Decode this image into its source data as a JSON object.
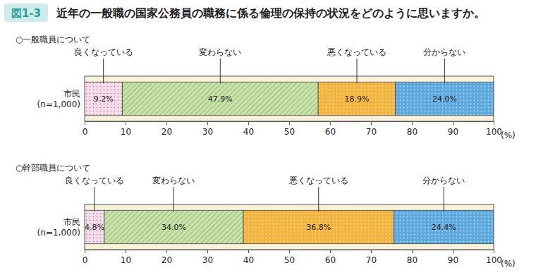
{
  "figure": {
    "label": "図1-3",
    "title": "近年の一般職の国家公務員の職務に係る倫理の保持の状況をどのように思いますか。"
  },
  "chart_data": [
    {
      "type": "bar",
      "orientation": "horizontal",
      "stacked": true,
      "data_labels": true,
      "legend": "top",
      "grid": false,
      "subtitle": "○一般職員について",
      "categories": [
        "市民\n(n=1,000)"
      ],
      "series": [
        {
          "name": "良くなっている",
          "color": "#f9dbe9",
          "values": [
            9.2
          ],
          "value_labels": [
            "9.2%"
          ]
        },
        {
          "name": "変わらない",
          "color": "#c8e3a8",
          "values": [
            47.9
          ],
          "value_labels": [
            "47.9%"
          ]
        },
        {
          "name": "悪くなっている",
          "color": "#f4b33a",
          "values": [
            18.9
          ],
          "value_labels": [
            "18.9%"
          ]
        },
        {
          "name": "分からない",
          "color": "#5ea8e0",
          "values": [
            24.0
          ],
          "value_labels": [
            "24.0%"
          ]
        }
      ],
      "xlim": [
        0,
        100
      ],
      "xticks": [
        0,
        10,
        20,
        30,
        40,
        50,
        60,
        70,
        80,
        90,
        100
      ],
      "xlabel": "(%)"
    },
    {
      "type": "bar",
      "orientation": "horizontal",
      "stacked": true,
      "data_labels": true,
      "legend": "top",
      "grid": false,
      "subtitle": "○幹部職員について",
      "categories": [
        "市民\n(n=1,000)"
      ],
      "series": [
        {
          "name": "良くなっている",
          "color": "#f9dbe9",
          "values": [
            4.8
          ],
          "value_labels": [
            "4.8%"
          ]
        },
        {
          "name": "変わらない",
          "color": "#c8e3a8",
          "values": [
            34.0
          ],
          "value_labels": [
            "34.0%"
          ]
        },
        {
          "name": "悪くなっている",
          "color": "#f4b33a",
          "values": [
            36.8
          ],
          "value_labels": [
            "36.8%"
          ]
        },
        {
          "name": "分からない",
          "color": "#5ea8e0",
          "values": [
            24.4
          ],
          "value_labels": [
            "24.4%"
          ]
        }
      ],
      "xlim": [
        0,
        100
      ],
      "xticks": [
        0,
        10,
        20,
        30,
        40,
        50,
        60,
        70,
        80,
        90,
        100
      ],
      "xlabel": "(%)"
    }
  ]
}
